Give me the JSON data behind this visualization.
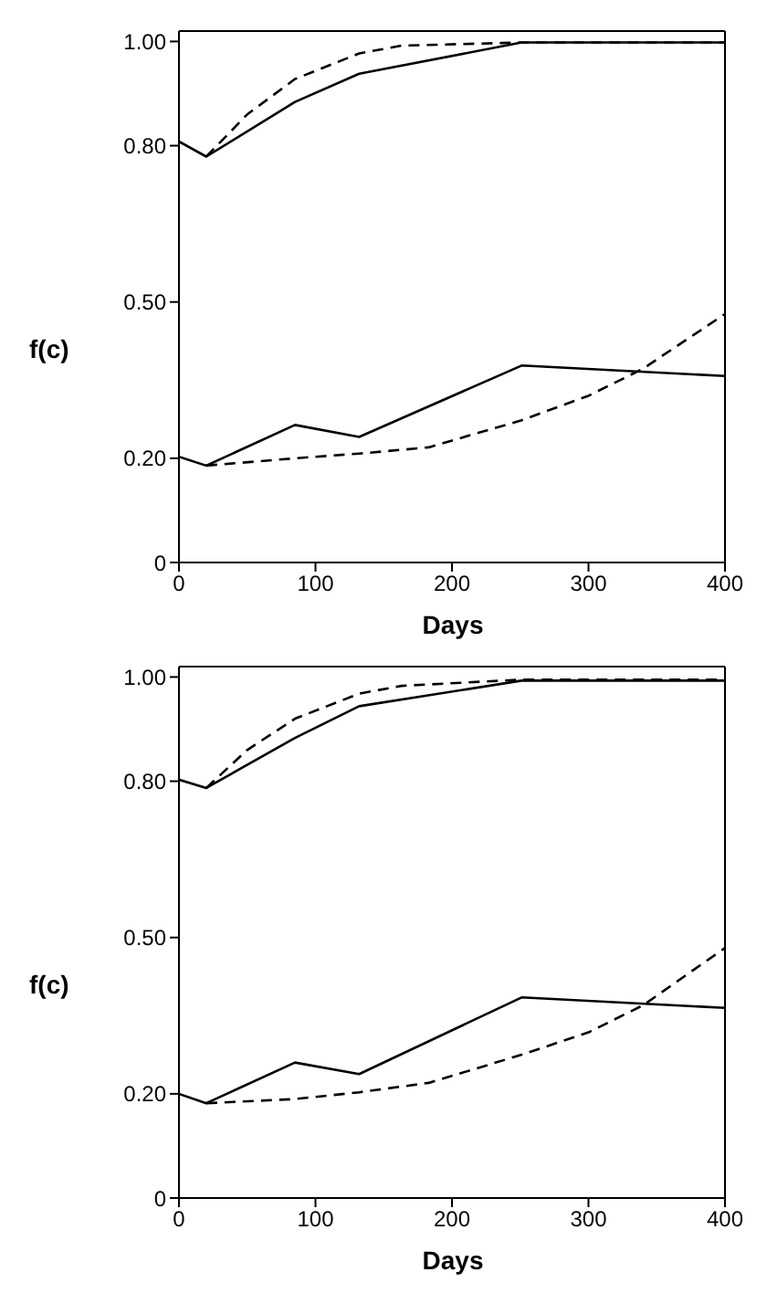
{
  "chart_data": [
    {
      "type": "line",
      "xlabel": "Days",
      "ylabel": "f(c)",
      "xlim": [
        0,
        400
      ],
      "ylim": [
        0,
        1.02
      ],
      "xticks": [
        0,
        100,
        200,
        300,
        400
      ],
      "yticks": [
        0,
        {
          "value": 0.2,
          "label": "0.20"
        },
        {
          "value": 0.5,
          "label": "0.50"
        },
        {
          "value": 0.8,
          "label": "0.80"
        },
        {
          "value": 1,
          "label": "1.00"
        }
      ],
      "grid": false,
      "legend": false,
      "marker": "none",
      "series": [
        {
          "color": "#000000",
          "line_style": "solid",
          "x": [
            0,
            20,
            85,
            132,
            251,
            400
          ],
          "values": [
            0.808,
            0.779,
            0.884,
            0.938,
            0.998,
            0.998
          ]
        },
        {
          "color": "#000000",
          "line_style": "dashed",
          "x": [
            20,
            50,
            85,
            132,
            163,
            251,
            400
          ],
          "values": [
            0.779,
            0.86,
            0.928,
            0.977,
            0.992,
            0.998,
            0.998
          ]
        },
        {
          "color": "#000000",
          "line_style": "solid",
          "x": [
            0,
            20,
            85,
            132,
            251,
            400
          ],
          "values": [
            0.203,
            0.186,
            0.264,
            0.241,
            0.378,
            0.358
          ]
        },
        {
          "color": "#000000",
          "line_style": "dashed",
          "x": [
            20,
            85,
            132,
            183,
            251,
            300,
            340,
            400
          ],
          "values": [
            0.186,
            0.2,
            0.209,
            0.221,
            0.273,
            0.32,
            0.372,
            0.477
          ]
        }
      ]
    },
    {
      "type": "line",
      "xlabel": "Days",
      "ylabel": "f(c)",
      "xlim": [
        0,
        400
      ],
      "ylim": [
        0,
        1.02
      ],
      "xticks": [
        0,
        100,
        200,
        300,
        400
      ],
      "yticks": [
        0,
        {
          "value": 0.2,
          "label": "0.20"
        },
        {
          "value": 0.5,
          "label": "0.50"
        },
        {
          "value": 0.8,
          "label": "0.80"
        },
        {
          "value": 1,
          "label": "1.00"
        }
      ],
      "grid": false,
      "legend": false,
      "marker": "none",
      "series": [
        {
          "color": "#000000",
          "line_style": "solid",
          "x": [
            0,
            20,
            85,
            132,
            251,
            400
          ],
          "values": [
            0.803,
            0.787,
            0.883,
            0.944,
            0.993,
            0.993
          ]
        },
        {
          "color": "#000000",
          "line_style": "dashed",
          "x": [
            20,
            50,
            85,
            132,
            163,
            251,
            400
          ],
          "values": [
            0.787,
            0.86,
            0.92,
            0.968,
            0.983,
            0.995,
            0.995
          ]
        },
        {
          "color": "#000000",
          "line_style": "solid",
          "x": [
            0,
            20,
            85,
            132,
            251,
            400
          ],
          "values": [
            0.2,
            0.182,
            0.26,
            0.238,
            0.385,
            0.365
          ]
        },
        {
          "color": "#000000",
          "line_style": "dashed",
          "x": [
            20,
            85,
            132,
            183,
            251,
            300,
            340,
            400
          ],
          "values": [
            0.182,
            0.19,
            0.203,
            0.221,
            0.275,
            0.318,
            0.37,
            0.48
          ]
        }
      ]
    }
  ]
}
